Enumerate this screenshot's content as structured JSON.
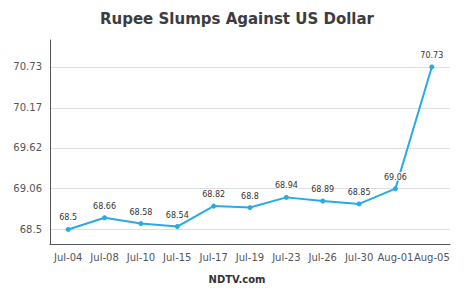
{
  "chart_data": {
    "type": "line",
    "title": "Rupee Slumps Against US Dollar",
    "categories": [
      "Jul-04",
      "Jul-08",
      "Jul-10",
      "Jul-15",
      "Jul-17",
      "Jul-19",
      "Jul-23",
      "Jul-26",
      "Jul-30",
      "Aug-01",
      "Aug-05"
    ],
    "values": [
      68.5,
      68.66,
      68.58,
      68.54,
      68.82,
      68.8,
      68.94,
      68.89,
      68.85,
      69.06,
      70.73
    ],
    "color": "#29ABE2",
    "ylim": [
      68.3,
      71.1
    ],
    "yticks": [
      68.5,
      69.06,
      69.62,
      70.17,
      70.73
    ],
    "grid": true,
    "data_labels": true,
    "annotation": "NDTV.com"
  }
}
